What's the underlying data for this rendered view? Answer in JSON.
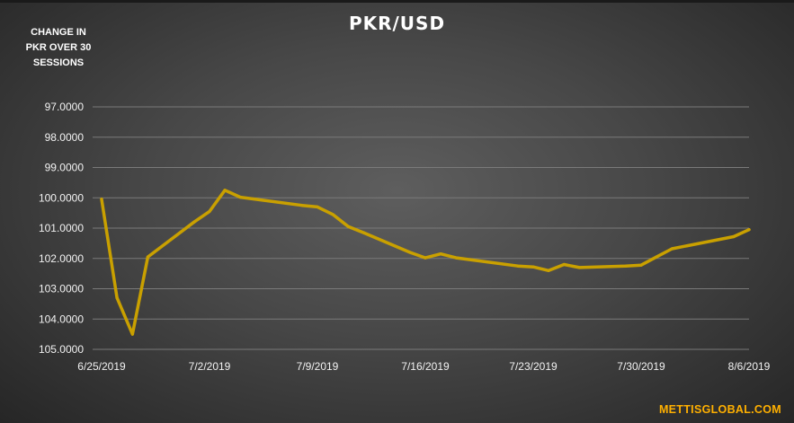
{
  "chart_data": {
    "type": "line",
    "title": "PKR/USD",
    "ylabel_lines": [
      "CHANGE IN",
      "PKR OVER 30",
      "SESSIONS"
    ],
    "y_reversed": true,
    "ylim": [
      97.0,
      105.0
    ],
    "y_ticks": [
      "97.0000",
      "98.0000",
      "99.0000",
      "100.0000",
      "101.0000",
      "102.0000",
      "103.0000",
      "104.0000",
      "105.0000"
    ],
    "x_range_days": [
      "6/25/2019",
      "8/6/2019"
    ],
    "x_ticks": [
      "6/25/2019",
      "7/2/2019",
      "7/9/2019",
      "7/16/2019",
      "7/23/2019",
      "7/30/2019",
      "8/6/2019"
    ],
    "grid": true,
    "line_color": "#c9a000",
    "series": [
      {
        "x": [
          "6/25/2019",
          "6/26/2019",
          "6/27/2019",
          "6/28/2019",
          "7/1/2019",
          "7/2/2019",
          "7/3/2019",
          "7/4/2019",
          "7/5/2019",
          "7/8/2019",
          "7/9/2019",
          "7/10/2019",
          "7/11/2019",
          "7/12/2019",
          "7/15/2019",
          "7/16/2019",
          "7/17/2019",
          "7/18/2019",
          "7/19/2019",
          "7/22/2019",
          "7/23/2019",
          "7/24/2019",
          "7/25/2019",
          "7/26/2019",
          "7/29/2019",
          "7/30/2019",
          "7/31/2019",
          "8/1/2019",
          "8/2/2019",
          "8/5/2019",
          "8/6/2019"
        ],
        "values": [
          100.05,
          103.3,
          104.5,
          101.95,
          100.8,
          100.45,
          99.75,
          99.98,
          100.05,
          100.25,
          100.3,
          100.55,
          100.95,
          101.15,
          101.8,
          101.98,
          101.85,
          101.98,
          102.05,
          102.25,
          102.28,
          102.4,
          102.2,
          102.3,
          102.25,
          102.22,
          101.95,
          101.68,
          101.58,
          101.28,
          101.05
        ]
      }
    ]
  },
  "watermark": "METTISGLOBAL.COM"
}
